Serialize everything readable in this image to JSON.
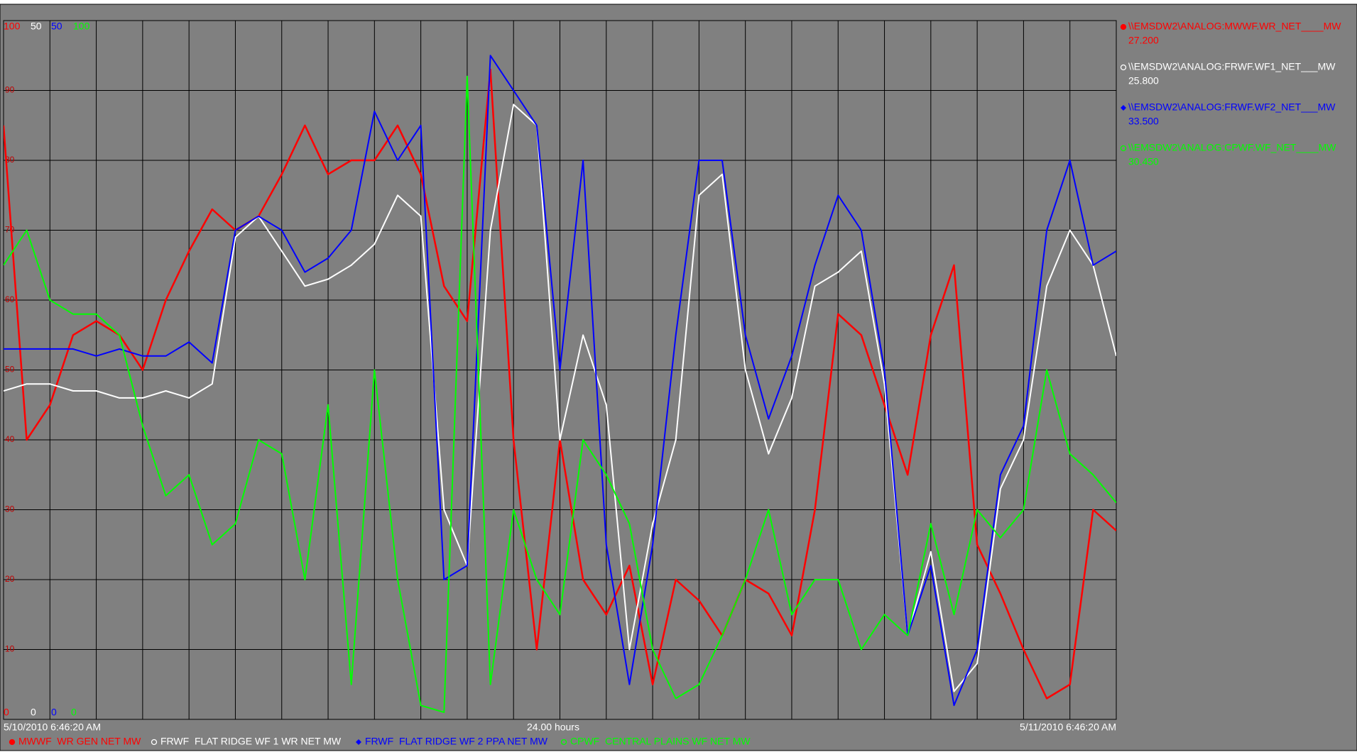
{
  "chart_data": {
    "type": "line",
    "start_label": "5/10/2010 6:46:20 AM",
    "span_label": "24.00 hours",
    "end_label": "5/11/2010 6:46:20 AM",
    "xlim": [
      0,
      24
    ],
    "xticks": [
      0,
      1,
      2,
      3,
      4,
      5,
      6,
      7,
      8,
      9,
      10,
      11,
      12,
      13,
      14,
      15,
      16,
      17,
      18,
      19,
      20,
      21,
      22,
      23,
      24
    ],
    "ylim": [
      0,
      100
    ],
    "yticks": [
      10,
      20,
      30,
      40,
      50,
      60,
      70,
      80,
      90
    ],
    "grid": true,
    "x": [
      0,
      0.5,
      1,
      1.5,
      2,
      2.5,
      3,
      3.5,
      4,
      4.5,
      5,
      5.5,
      6,
      6.5,
      7,
      7.5,
      8,
      8.5,
      9,
      9.5,
      10,
      10.5,
      11,
      11.5,
      12,
      12.5,
      13,
      13.5,
      14,
      14.5,
      15,
      15.5,
      16,
      16.5,
      17,
      17.5,
      18,
      18.5,
      19,
      19.5,
      20,
      20.5,
      21,
      21.5,
      22,
      22.5,
      23,
      23.5,
      24
    ],
    "series": [
      {
        "name": "MWWF  WR GEN NET MW",
        "tag": "\\\\EMSDW2\\ANALOG:MWWF.WR_NET____MW",
        "current": {
          "value": 27.2,
          "label": "27.200"
        },
        "color": "#ff0000",
        "marker": "filled-circle",
        "ylim": [
          0,
          100
        ],
        "values": [
          85,
          40,
          45,
          55,
          57,
          55,
          50,
          60,
          67,
          73,
          70,
          72,
          78,
          85,
          78,
          80,
          80,
          85,
          78,
          62,
          57,
          93,
          40,
          10,
          40,
          20,
          15,
          22,
          5,
          20,
          17,
          12,
          20,
          18,
          12,
          30,
          58,
          55,
          45,
          35,
          55,
          65,
          25,
          18,
          10,
          3,
          5,
          30,
          27
        ]
      },
      {
        "name": "FRWF  FLAT RIDGE WF 1 WR NET MW",
        "tag": "\\\\EMSDW2\\ANALOG:FRWF.WF1_NET___MW",
        "current": {
          "value": 25.8,
          "label": "25.800"
        },
        "color": "#ffffff",
        "marker": "hollow-circle",
        "ylim": [
          0,
          50
        ],
        "values": [
          23.5,
          24,
          24,
          23.5,
          23.5,
          23,
          23,
          23.5,
          23,
          24,
          34.5,
          36,
          33.5,
          31,
          31.5,
          32.5,
          34,
          37.5,
          36,
          15,
          11,
          35,
          44,
          42.5,
          20,
          27.5,
          22.5,
          5,
          14,
          20,
          37.5,
          39,
          25,
          19,
          23,
          31,
          32,
          33.5,
          24,
          6,
          12,
          2,
          4,
          16.5,
          20,
          31,
          35,
          32.5,
          26
        ]
      },
      {
        "name": "FRWF  FLAT RIDGE WF 2 PPA NET MW",
        "tag": "\\\\EMSDW2\\ANALOG:FRWF.WF2_NET___MW",
        "current": {
          "value": 33.5,
          "label": "33.500"
        },
        "color": "#0000ff",
        "marker": "diamond",
        "ylim": [
          0,
          50
        ],
        "values": [
          26.5,
          26.5,
          26.5,
          26.5,
          26,
          26.5,
          26,
          26,
          27,
          25.5,
          35,
          36,
          35,
          32,
          33,
          35,
          43.5,
          40,
          42.5,
          10,
          11,
          47.5,
          45,
          42.5,
          25,
          40,
          12.5,
          2.5,
          12.5,
          27.5,
          40,
          40,
          27.5,
          21.5,
          26,
          32.5,
          37.5,
          35,
          25,
          6,
          11,
          1,
          5,
          17.5,
          21,
          35,
          40,
          32.5,
          33.5
        ]
      },
      {
        "name": "CPWF  CENTRAL PLAINS WF NET MW",
        "tag": "\\\\EMSDW2\\ANALOG:CPWF.WF_NET____MW",
        "current": {
          "value": 30.45,
          "label": "30.450"
        },
        "color": "#00ff00",
        "marker": "hollow-circle",
        "ylim": [
          0,
          100
        ],
        "values": [
          65,
          70,
          60,
          58,
          58,
          55,
          42,
          32,
          35,
          25,
          28,
          40,
          38,
          20,
          45,
          5,
          50,
          20,
          2,
          1,
          92,
          5,
          30,
          20,
          15,
          40,
          35,
          28,
          10,
          3,
          5,
          12,
          20,
          30,
          15,
          20,
          20,
          10,
          15,
          12,
          28,
          15,
          30,
          26,
          30,
          50,
          38,
          35,
          31
        ]
      }
    ]
  }
}
